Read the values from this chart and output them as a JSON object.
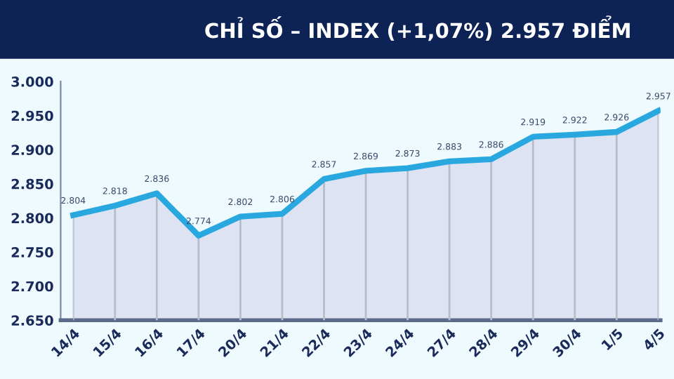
{
  "chart_data": {
    "type": "area",
    "title": "CHỈ SỐ – INDEX (+1,07%) 2.957 ĐIỂM",
    "categories": [
      "14/4",
      "15/4",
      "16/4",
      "17/4",
      "20/4",
      "21/4",
      "22/4",
      "23/4",
      "24/4",
      "27/4",
      "28/4",
      "29/4",
      "30/4",
      "1/5",
      "4/5"
    ],
    "series": [
      {
        "color": "#29a8e0",
        "values": [
          2804,
          2818,
          2836,
          2774,
          2802,
          2806,
          2857,
          2869,
          2873,
          2883,
          2886,
          2919,
          2922,
          2926,
          2957
        ],
        "value_labels": [
          "2.804",
          "2.818",
          "2.836",
          "2.774",
          "2.802",
          "2.806",
          "2.857",
          "2.869",
          "2.873",
          "2.883",
          "2.886",
          "2.919",
          "2.922",
          "2.926",
          "2.957"
        ]
      }
    ],
    "ylim": [
      2650,
      3000
    ],
    "yticks": [
      {
        "value": 2650,
        "label": "2.650"
      },
      {
        "value": 2700,
        "label": "2.700"
      },
      {
        "value": 2750,
        "label": "2.750"
      },
      {
        "value": 2800,
        "label": "2.800"
      },
      {
        "value": 2850,
        "label": "2.850"
      },
      {
        "value": 2900,
        "label": "2.900"
      },
      {
        "value": 2950,
        "label": "2.950"
      },
      {
        "value": 3000,
        "label": "3.000"
      }
    ],
    "grid": "x",
    "legend": false
  }
}
